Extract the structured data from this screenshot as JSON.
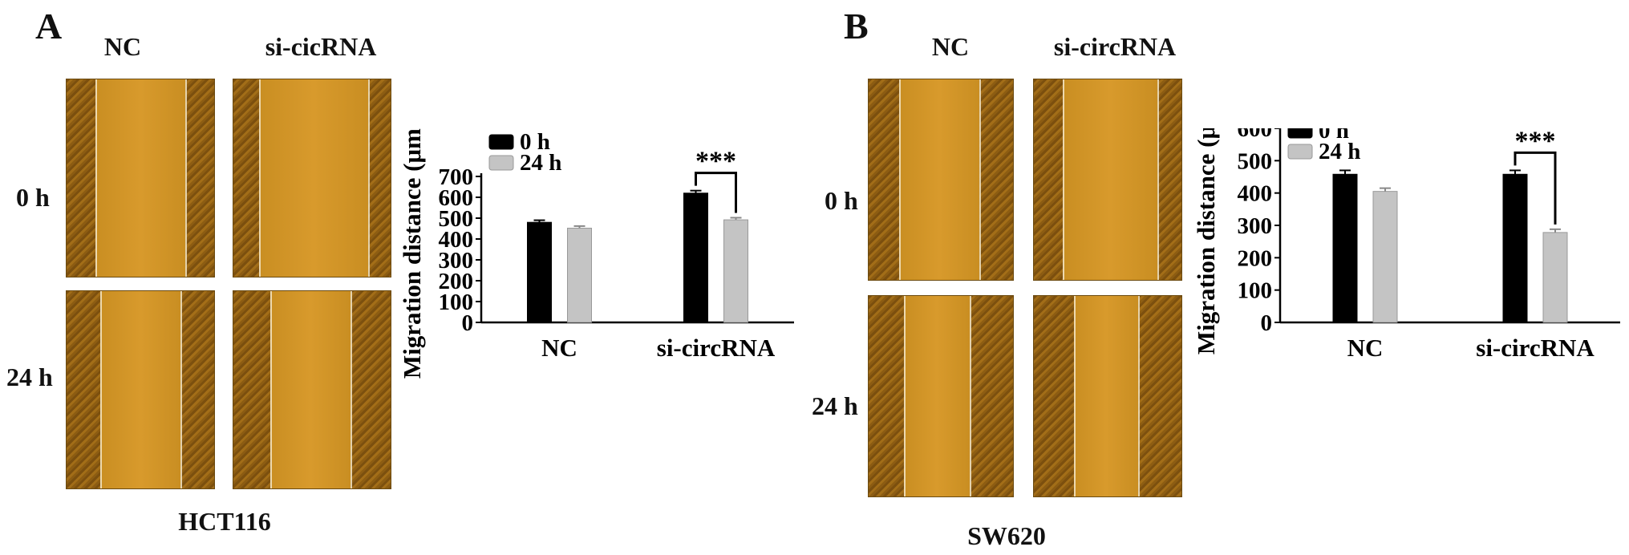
{
  "panels": [
    {
      "letter": "A",
      "col_labels": [
        "NC",
        "si-cicRNA"
      ],
      "row_labels": [
        "0 h",
        "24 h"
      ],
      "cell_line": "HCT116"
    },
    {
      "letter": "B",
      "col_labels": [
        "NC",
        "si-circRNA"
      ],
      "row_labels": [
        "0 h",
        "24 h"
      ],
      "cell_line": "SW620"
    }
  ],
  "chart_data": [
    {
      "type": "bar",
      "categories": [
        "NC",
        "si-circRNA"
      ],
      "series": [
        {
          "name": "0 h",
          "values": [
            480,
            620
          ],
          "errors": [
            10,
            12
          ],
          "color": "#000000"
        },
        {
          "name": "24 h",
          "values": [
            452,
            492
          ],
          "errors": [
            10,
            10
          ],
          "color": "#c4c4c4"
        }
      ],
      "ylabel": "Migration distance (μm)",
      "ylim": [
        0,
        700
      ],
      "yticks": [
        "0",
        "100",
        "200",
        "300",
        "400",
        "500",
        "600",
        "700"
      ],
      "significance": {
        "category": "si-circRNA",
        "label": "***"
      },
      "legend_position": "top-left"
    },
    {
      "type": "bar",
      "categories": [
        "NC",
        "si-circRNA"
      ],
      "series": [
        {
          "name": "0 h",
          "values": [
            458,
            458
          ],
          "errors": [
            12,
            12
          ],
          "color": "#000000"
        },
        {
          "name": "24 h",
          "values": [
            405,
            278
          ],
          "errors": [
            10,
            10
          ],
          "color": "#c4c4c4"
        }
      ],
      "ylabel": "Migration distance (μm)",
      "ylim": [
        0,
        600
      ],
      "yticks": [
        "0",
        "100",
        "200",
        "300",
        "400",
        "500",
        "600"
      ],
      "significance": {
        "category": "si-circRNA",
        "label": "***"
      },
      "legend_position": "top-left"
    }
  ]
}
